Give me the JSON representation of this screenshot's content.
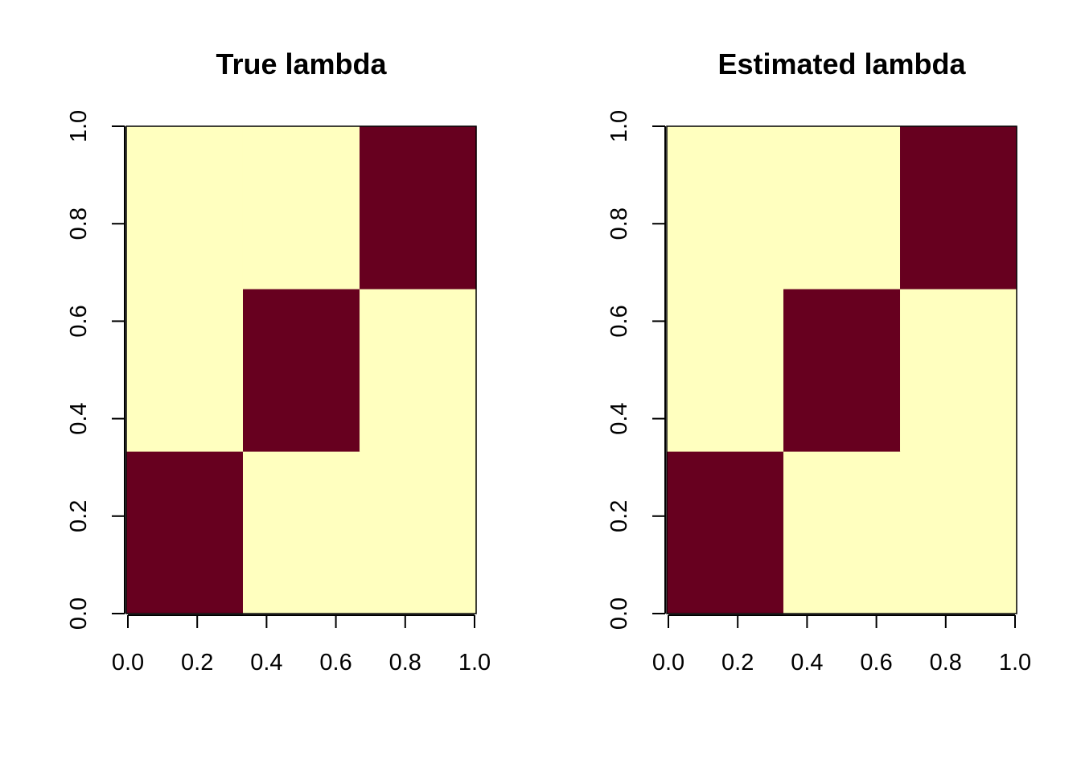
{
  "chart_data": [
    {
      "type": "heatmap",
      "title": "True lambda",
      "xlabel": "",
      "ylabel": "",
      "xlim": [
        0,
        1
      ],
      "ylim": [
        0,
        1
      ],
      "x_ticks": [
        "0.0",
        "0.2",
        "0.4",
        "0.6",
        "0.8",
        "1.0"
      ],
      "y_ticks": [
        "0.0",
        "0.2",
        "0.4",
        "0.6",
        "0.8",
        "1.0"
      ],
      "x_edges": [
        0,
        0.3333,
        0.6667,
        1
      ],
      "y_edges": [
        0,
        0.3333,
        0.6667,
        1
      ],
      "values": [
        [
          1,
          0,
          0
        ],
        [
          0,
          1,
          0
        ],
        [
          0,
          0,
          1
        ]
      ],
      "grid": false
    },
    {
      "type": "heatmap",
      "title": "Estimated lambda",
      "xlabel": "",
      "ylabel": "",
      "xlim": [
        0,
        1
      ],
      "ylim": [
        0,
        1
      ],
      "x_ticks": [
        "0.0",
        "0.2",
        "0.4",
        "0.6",
        "0.8",
        "1.0"
      ],
      "y_ticks": [
        "0.0",
        "0.2",
        "0.4",
        "0.6",
        "0.8",
        "1.0"
      ],
      "x_edges": [
        0,
        0.3333,
        0.6667,
        1
      ],
      "y_edges": [
        0,
        0.3333,
        0.6667,
        1
      ],
      "values": [
        [
          1,
          0,
          0
        ],
        [
          0,
          1,
          0
        ],
        [
          0,
          0,
          1
        ]
      ],
      "grid": false
    }
  ],
  "colors": {
    "high": "#67001f",
    "low": "#ffffbf",
    "axis": "#000000"
  }
}
